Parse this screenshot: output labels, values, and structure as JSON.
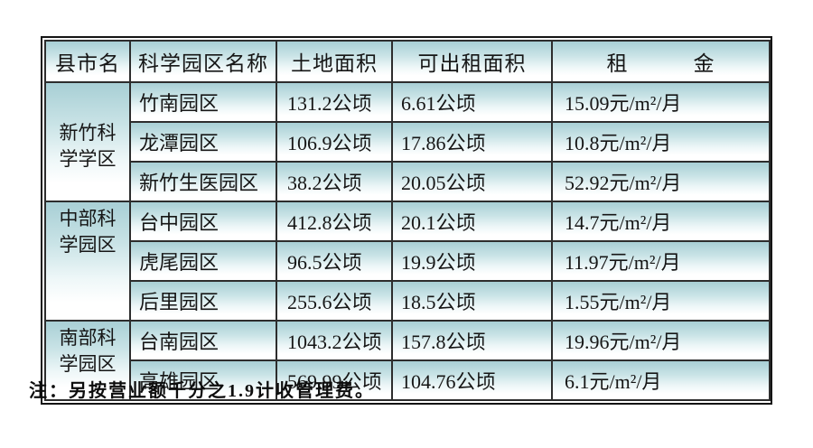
{
  "table": {
    "headers": [
      "县市名",
      "科学园区名称",
      "土地面积",
      "可出租面积",
      "租　　　金"
    ],
    "groups": [
      {
        "name": "新竹科学学区",
        "rows": [
          {
            "park": "竹南园区",
            "land": "131.2公顷",
            "rentable": "6.61公顷",
            "rent": "15.09元/m²/月"
          },
          {
            "park": "龙潭园区",
            "land": "106.9公顷",
            "rentable": "17.86公顷",
            "rent": "10.8元/m²/月"
          },
          {
            "park": "新竹生医园区",
            "land": "38.2公顷",
            "rentable": "20.05公顷",
            "rent": "52.92元/m²/月"
          }
        ]
      },
      {
        "name": "中部科学园区",
        "rows": [
          {
            "park": "台中园区",
            "land": "412.8公顷",
            "rentable": "20.1公顷",
            "rent": "14.7元/m²/月"
          },
          {
            "park": "虎尾园区",
            "land": "96.5公顷",
            "rentable": "19.9公顷",
            "rent": "11.97元/m²/月"
          },
          {
            "park": "后里园区",
            "land": "255.6公顷",
            "rentable": "18.5公顷",
            "rent": "1.55元/m²/月"
          }
        ]
      },
      {
        "name": "南部科学园区",
        "rows": [
          {
            "park": "台南园区",
            "land": "1043.2公顷",
            "rentable": "157.8公顷",
            "rent": "19.96元/m²/月"
          },
          {
            "park": "高雄园区",
            "land": "569.99公顷",
            "rentable": "104.76公顷",
            "rent": "6.1元/m²/月"
          }
        ]
      }
    ]
  },
  "note": "注：另按营业额千分之1.9计收管理费。",
  "colors": {
    "cell_gradient_top": "#a8cfd5",
    "cell_gradient_bottom": "#ffffff",
    "grid_border": "#2d2d2d",
    "outer_border": "#141414",
    "text": "#161616"
  }
}
